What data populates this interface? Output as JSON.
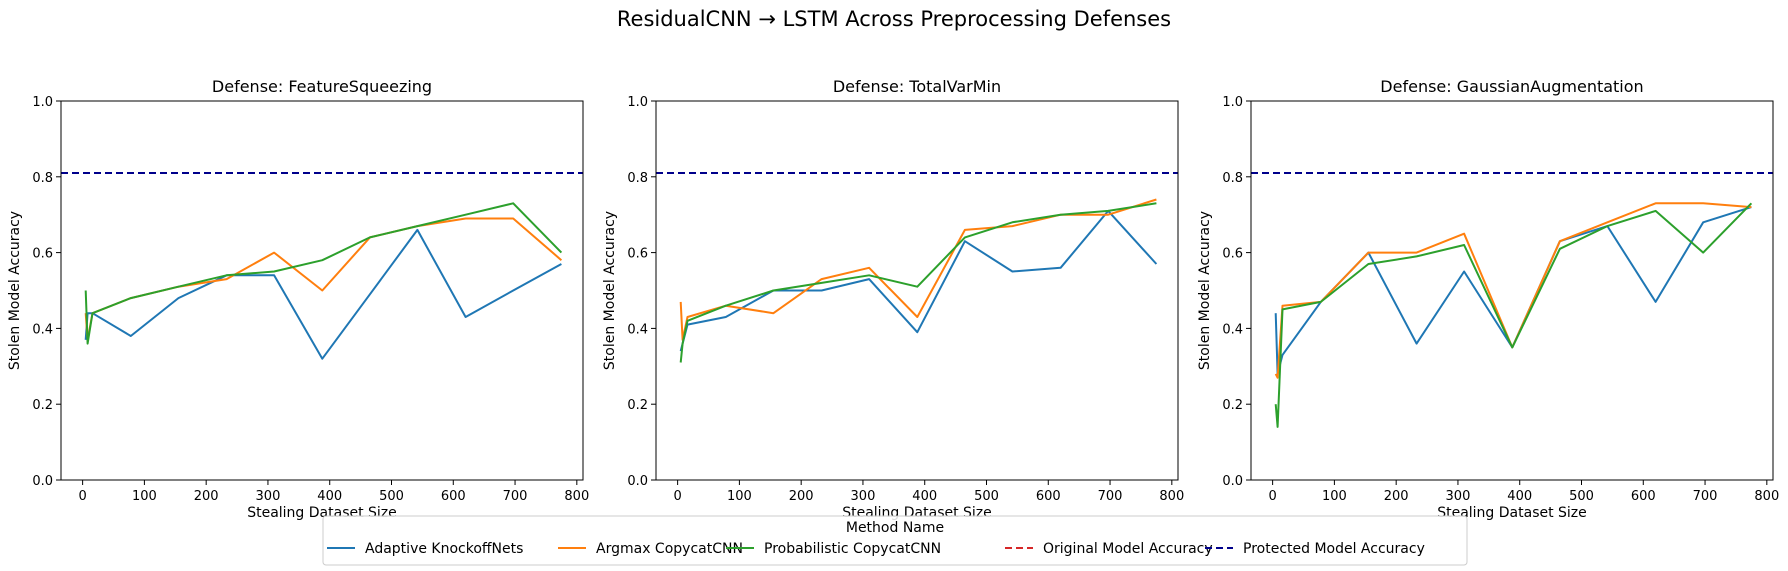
{
  "figure": {
    "title": "ResidualCNN → LSTM Across Preprocessing Defenses",
    "legend_title": "Method Name"
  },
  "colors": {
    "Adaptive KnockoffNets": "#1f77b4",
    "Argmax CopycatCNN": "#ff7f0e",
    "Probabilistic CopycatCNN": "#2ca02c",
    "Original Model Accuracy": "#d62728",
    "Protected Model Accuracy": "#00008b"
  },
  "legend": {
    "position": "bottom-center",
    "entries": [
      {
        "name": "Adaptive KnockoffNets",
        "style": "solid"
      },
      {
        "name": "Argmax CopycatCNN",
        "style": "solid"
      },
      {
        "name": "Probabilistic CopycatCNN",
        "style": "solid"
      },
      {
        "name": "Original Model Accuracy",
        "style": "dashed"
      },
      {
        "name": "Protected Model Accuracy",
        "style": "dashed"
      }
    ]
  },
  "chart_data": [
    {
      "type": "line",
      "title": "Defense: FeatureSqueezing",
      "xlabel": "Stealing Dataset Size",
      "ylabel": "Stolen Model Accuracy",
      "xlim": [
        -35,
        810
      ],
      "ylim": [
        0,
        1
      ],
      "xticks": [
        0,
        100,
        200,
        300,
        400,
        500,
        600,
        700,
        800
      ],
      "yticks": [
        0.0,
        0.2,
        0.4,
        0.6,
        0.8,
        1.0
      ],
      "x": [
        5,
        8,
        16,
        78,
        155,
        233,
        310,
        388,
        465,
        542,
        620,
        697,
        775
      ],
      "series": [
        {
          "name": "Adaptive KnockoffNets",
          "values": [
            0.37,
            0.44,
            0.44,
            0.38,
            0.48,
            0.54,
            0.54,
            0.32,
            0.49,
            0.66,
            0.43,
            0.5,
            0.57
          ]
        },
        {
          "name": "Argmax CopycatCNN",
          "values": [
            0.44,
            0.37,
            0.44,
            0.48,
            0.51,
            0.53,
            0.6,
            0.5,
            0.64,
            0.67,
            0.69,
            0.69,
            0.58
          ]
        },
        {
          "name": "Probabilistic CopycatCNN",
          "values": [
            0.5,
            0.36,
            0.44,
            0.48,
            0.51,
            0.54,
            0.55,
            0.58,
            0.64,
            0.67,
            0.7,
            0.73,
            0.6
          ]
        }
      ],
      "hlines": [
        {
          "name": "Protected Model Accuracy",
          "y": 0.81
        }
      ]
    },
    {
      "type": "line",
      "title": "Defense: TotalVarMin",
      "xlabel": "Stealing Dataset Size",
      "ylabel": "Stolen Model Accuracy",
      "xlim": [
        -35,
        810
      ],
      "ylim": [
        0,
        1
      ],
      "xticks": [
        0,
        100,
        200,
        300,
        400,
        500,
        600,
        700,
        800
      ],
      "yticks": [
        0.0,
        0.2,
        0.4,
        0.6,
        0.8,
        1.0
      ],
      "x": [
        5,
        8,
        16,
        78,
        155,
        233,
        310,
        388,
        465,
        542,
        620,
        697,
        775
      ],
      "series": [
        {
          "name": "Adaptive KnockoffNets",
          "values": [
            0.34,
            0.36,
            0.41,
            0.43,
            0.5,
            0.5,
            0.53,
            0.39,
            0.63,
            0.55,
            0.56,
            0.71,
            0.57
          ]
        },
        {
          "name": "Argmax CopycatCNN",
          "values": [
            0.47,
            0.37,
            0.43,
            0.46,
            0.44,
            0.53,
            0.56,
            0.43,
            0.66,
            0.67,
            0.7,
            0.7,
            0.74
          ]
        },
        {
          "name": "Probabilistic CopycatCNN",
          "values": [
            0.31,
            0.36,
            0.42,
            0.46,
            0.5,
            0.52,
            0.54,
            0.51,
            0.64,
            0.68,
            0.7,
            0.71,
            0.73
          ]
        }
      ],
      "hlines": [
        {
          "name": "Protected Model Accuracy",
          "y": 0.81
        }
      ]
    },
    {
      "type": "line",
      "title": "Defense: GaussianAugmentation",
      "xlabel": "Stealing Dataset Size",
      "ylabel": "Stolen Model Accuracy",
      "xlim": [
        -35,
        810
      ],
      "ylim": [
        0,
        1
      ],
      "xticks": [
        0,
        100,
        200,
        300,
        400,
        500,
        600,
        700,
        800
      ],
      "yticks": [
        0.0,
        0.2,
        0.4,
        0.6,
        0.8,
        1.0
      ],
      "x": [
        5,
        8,
        16,
        78,
        155,
        233,
        310,
        388,
        465,
        542,
        620,
        697,
        775
      ],
      "series": [
        {
          "name": "Adaptive KnockoffNets",
          "values": [
            0.44,
            0.28,
            0.33,
            0.47,
            0.6,
            0.36,
            0.55,
            0.35,
            0.63,
            0.67,
            0.47,
            0.68,
            0.72
          ]
        },
        {
          "name": "Argmax CopycatCNN",
          "values": [
            0.28,
            0.27,
            0.46,
            0.47,
            0.6,
            0.6,
            0.65,
            0.35,
            0.63,
            0.68,
            0.73,
            0.73,
            0.72
          ]
        },
        {
          "name": "Probabilistic CopycatCNN",
          "values": [
            0.2,
            0.14,
            0.45,
            0.47,
            0.57,
            0.59,
            0.62,
            0.35,
            0.61,
            0.67,
            0.71,
            0.6,
            0.73
          ]
        }
      ],
      "hlines": [
        {
          "name": "Protected Model Accuracy",
          "y": 0.81
        }
      ]
    }
  ]
}
